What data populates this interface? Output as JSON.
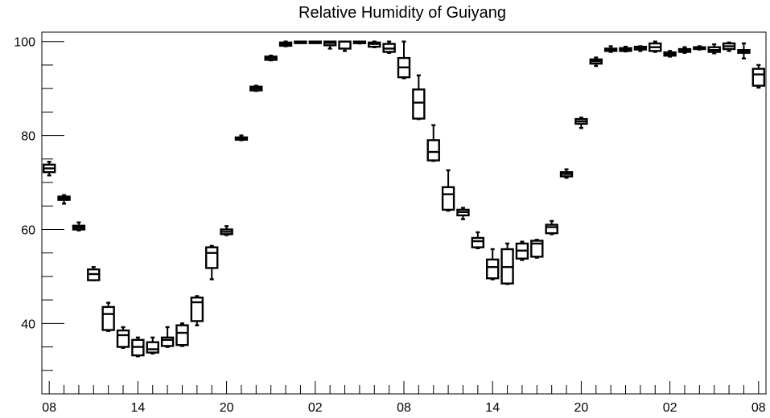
{
  "chart_data": {
    "type": "boxplot",
    "title": "Relative Humidity of Guiyang",
    "xlabel": "",
    "ylabel": "",
    "ylim": [
      25,
      102
    ],
    "y_ticks": [
      40,
      60,
      80,
      100
    ],
    "x_tick_labels": [
      "08",
      "14",
      "20",
      "02",
      "08",
      "14",
      "20",
      "02",
      "08"
    ],
    "x_tick_hours": [
      0,
      6,
      12,
      18,
      24,
      30,
      36,
      42,
      48
    ],
    "x_range": [
      -0.5,
      48.5
    ],
    "grid": false,
    "line_color": "#000000",
    "boxes": [
      {
        "hour": 0,
        "min": 71.5,
        "q1": 72.2,
        "median": 73.0,
        "q3": 73.8,
        "max": 74.4
      },
      {
        "hour": 1,
        "min": 65.5,
        "q1": 66.3,
        "median": 66.7,
        "q3": 67.0,
        "max": 67.3
      },
      {
        "hour": 2,
        "min": 59.8,
        "q1": 60.0,
        "median": 60.4,
        "q3": 60.8,
        "max": 61.5
      },
      {
        "hour": 3,
        "min": 49.2,
        "q1": 49.2,
        "median": 50.5,
        "q3": 51.5,
        "max": 52.0
      },
      {
        "hour": 4,
        "min": 38.4,
        "q1": 38.6,
        "median": 42.0,
        "q3": 43.5,
        "max": 44.4
      },
      {
        "hour": 5,
        "min": 34.8,
        "q1": 35.0,
        "median": 37.5,
        "q3": 38.5,
        "max": 39.2
      },
      {
        "hour": 6,
        "min": 33.0,
        "q1": 33.2,
        "median": 35.0,
        "q3": 36.5,
        "max": 37.0
      },
      {
        "hour": 7,
        "min": 33.6,
        "q1": 33.8,
        "median": 34.5,
        "q3": 36.0,
        "max": 37.0
      },
      {
        "hour": 8,
        "min": 35.0,
        "q1": 35.2,
        "median": 36.5,
        "q3": 37.0,
        "max": 39.2
      },
      {
        "hour": 9,
        "min": 35.2,
        "q1": 35.4,
        "median": 38.0,
        "q3": 39.6,
        "max": 40.0
      },
      {
        "hour": 10,
        "min": 39.6,
        "q1": 40.5,
        "median": 44.5,
        "q3": 45.5,
        "max": 45.8
      },
      {
        "hour": 11,
        "min": 49.4,
        "q1": 51.8,
        "median": 55.0,
        "q3": 56.2,
        "max": 56.5
      },
      {
        "hour": 12,
        "min": 58.8,
        "q1": 59.0,
        "median": 59.5,
        "q3": 60.0,
        "max": 60.7
      },
      {
        "hour": 13,
        "min": 79.0,
        "q1": 79.1,
        "median": 79.4,
        "q3": 79.6,
        "max": 80.0
      },
      {
        "hour": 14,
        "min": 89.5,
        "q1": 89.6,
        "median": 90.0,
        "q3": 90.4,
        "max": 90.6
      },
      {
        "hour": 15,
        "min": 96.0,
        "q1": 96.1,
        "median": 96.5,
        "q3": 96.8,
        "max": 97.0
      },
      {
        "hour": 16,
        "min": 99.0,
        "q1": 99.1,
        "median": 99.4,
        "q3": 99.8,
        "max": 100.0
      },
      {
        "hour": 17,
        "min": 99.9,
        "q1": 99.9,
        "median": 100.0,
        "q3": 100.0,
        "max": 100.0
      },
      {
        "hour": 18,
        "min": 99.8,
        "q1": 99.9,
        "median": 100.0,
        "q3": 100.0,
        "max": 100.0
      },
      {
        "hour": 19,
        "min": 98.5,
        "q1": 99.2,
        "median": 99.7,
        "q3": 100.0,
        "max": 100.0
      },
      {
        "hour": 20,
        "min": 98.0,
        "q1": 98.5,
        "median": 100.0,
        "q3": 100.0,
        "max": 100.0
      },
      {
        "hour": 21,
        "min": 99.6,
        "q1": 99.8,
        "median": 100.0,
        "q3": 100.0,
        "max": 100.0
      },
      {
        "hour": 22,
        "min": 98.8,
        "q1": 98.9,
        "median": 99.5,
        "q3": 99.8,
        "max": 100.0
      },
      {
        "hour": 23,
        "min": 97.6,
        "q1": 97.8,
        "median": 98.5,
        "q3": 99.5,
        "max": 100.0
      },
      {
        "hour": 24,
        "min": 92.2,
        "q1": 92.4,
        "median": 94.5,
        "q3": 96.5,
        "max": 100.0
      },
      {
        "hour": 25,
        "min": 83.5,
        "q1": 83.6,
        "median": 87.0,
        "q3": 89.8,
        "max": 92.8
      },
      {
        "hour": 26,
        "min": 74.6,
        "q1": 74.7,
        "median": 76.5,
        "q3": 79.0,
        "max": 82.2
      },
      {
        "hour": 27,
        "min": 64.0,
        "q1": 64.2,
        "median": 67.5,
        "q3": 69.0,
        "max": 72.6
      },
      {
        "hour": 28,
        "min": 62.2,
        "q1": 63.0,
        "median": 63.7,
        "q3": 64.2,
        "max": 64.6
      },
      {
        "hour": 29,
        "min": 56.0,
        "q1": 56.2,
        "median": 57.5,
        "q3": 58.2,
        "max": 59.4
      },
      {
        "hour": 30,
        "min": 49.4,
        "q1": 49.6,
        "median": 52.0,
        "q3": 53.6,
        "max": 55.8
      },
      {
        "hour": 31,
        "min": 48.4,
        "q1": 48.5,
        "median": 52.0,
        "q3": 55.8,
        "max": 57.0
      },
      {
        "hour": 32,
        "min": 53.5,
        "q1": 53.8,
        "median": 55.5,
        "q3": 57.0,
        "max": 57.4
      },
      {
        "hour": 33,
        "min": 54.0,
        "q1": 54.2,
        "median": 57.0,
        "q3": 57.6,
        "max": 57.8
      },
      {
        "hour": 34,
        "min": 59.0,
        "q1": 59.2,
        "median": 60.5,
        "q3": 61.0,
        "max": 61.8
      },
      {
        "hour": 35,
        "min": 71.0,
        "q1": 71.3,
        "median": 71.8,
        "q3": 72.2,
        "max": 72.8
      },
      {
        "hour": 36,
        "min": 81.6,
        "q1": 82.5,
        "median": 83.0,
        "q3": 83.5,
        "max": 83.8
      },
      {
        "hour": 37,
        "min": 94.8,
        "q1": 95.3,
        "median": 95.8,
        "q3": 96.2,
        "max": 96.6
      },
      {
        "hour": 38,
        "min": 97.8,
        "q1": 98.0,
        "median": 98.3,
        "q3": 98.5,
        "max": 99.0
      },
      {
        "hour": 39,
        "min": 97.9,
        "q1": 98.0,
        "median": 98.3,
        "q3": 98.6,
        "max": 98.9
      },
      {
        "hour": 40,
        "min": 98.0,
        "q1": 98.3,
        "median": 98.6,
        "q3": 98.9,
        "max": 99.0
      },
      {
        "hour": 41,
        "min": 97.8,
        "q1": 98.0,
        "median": 98.8,
        "q3": 99.6,
        "max": 100.0
      },
      {
        "hour": 42,
        "min": 96.8,
        "q1": 97.0,
        "median": 97.4,
        "q3": 97.7,
        "max": 98.0
      },
      {
        "hour": 43,
        "min": 97.6,
        "q1": 97.8,
        "median": 98.1,
        "q3": 98.4,
        "max": 98.8
      },
      {
        "hour": 44,
        "min": 98.3,
        "q1": 98.4,
        "median": 98.6,
        "q3": 98.8,
        "max": 99.0
      },
      {
        "hour": 45,
        "min": 97.5,
        "q1": 97.8,
        "median": 98.2,
        "q3": 98.8,
        "max": 99.4
      },
      {
        "hour": 46,
        "min": 98.0,
        "q1": 98.4,
        "median": 99.0,
        "q3": 99.6,
        "max": 99.8
      },
      {
        "hour": 47,
        "min": 96.4,
        "q1": 97.6,
        "median": 98.0,
        "q3": 98.2,
        "max": 99.6
      },
      {
        "hour": 48,
        "min": 90.2,
        "q1": 90.6,
        "median": 93.0,
        "q3": 94.2,
        "max": 95.0
      }
    ]
  }
}
